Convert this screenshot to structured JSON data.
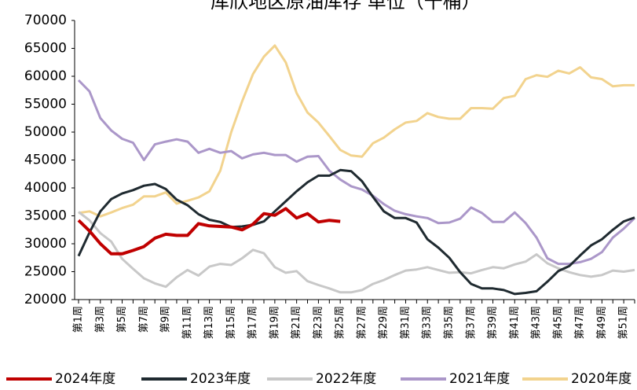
{
  "chart_data": {
    "type": "line",
    "title": "库欣地区原油库存 单位（千桶）",
    "categories": [
      "第1周",
      null,
      "第3周",
      null,
      "第5周",
      null,
      "第7周",
      null,
      "第9周",
      null,
      "第11周",
      null,
      "第13周",
      null,
      "第15周",
      null,
      "第17周",
      null,
      "第19周",
      null,
      "第21周",
      null,
      "第23周",
      null,
      "第25周",
      null,
      "第27周",
      null,
      "第29周",
      null,
      "第31周",
      null,
      "第33周",
      null,
      "第35周",
      null,
      "第37周",
      null,
      "第39周",
      null,
      "第41周",
      null,
      "第43周",
      null,
      "第45周",
      null,
      "第47周",
      null,
      "第49周",
      null,
      "第51周",
      null
    ],
    "ylim": [
      20000,
      70000
    ],
    "yticks": [
      20000,
      25000,
      30000,
      35000,
      40000,
      45000,
      50000,
      55000,
      60000,
      65000,
      70000
    ],
    "series": [
      {
        "name": "2024年度",
        "color": "#c00000",
        "values": [
          34200,
          32300,
          30000,
          28200,
          28200,
          28800,
          29500,
          31000,
          31700,
          31500,
          31500,
          33600,
          33200,
          33100,
          33000,
          32500,
          33500,
          35400,
          35100,
          36300,
          34600,
          35400,
          33900,
          34200,
          34000,
          null,
          null,
          null,
          null,
          null,
          null,
          null,
          null,
          null,
          null,
          null,
          null,
          null,
          null,
          null,
          null,
          null,
          null,
          null,
          null,
          null,
          null,
          null,
          null,
          null,
          null,
          null
        ]
      },
      {
        "name": "2023年度",
        "color": "#1f2a30",
        "values": [
          27800,
          32000,
          35800,
          38000,
          39000,
          39600,
          40400,
          40700,
          39800,
          37900,
          36900,
          35300,
          34300,
          33900,
          33000,
          33100,
          33400,
          34000,
          35800,
          37600,
          39400,
          41000,
          42200,
          42200,
          43200,
          43000,
          41200,
          38400,
          35800,
          34600,
          34600,
          33800,
          30800,
          29300,
          27500,
          24900,
          22800,
          22000,
          22000,
          21700,
          21000,
          21200,
          21500,
          23200,
          25100,
          26000,
          27900,
          29700,
          30800,
          32500,
          34000,
          34700
        ]
      },
      {
        "name": "2022年度",
        "color": "#c8c8c8",
        "values": [
          35700,
          34200,
          31900,
          30400,
          27300,
          25500,
          23800,
          22900,
          22300,
          24000,
          25300,
          24300,
          25900,
          26400,
          26200,
          27400,
          28900,
          28300,
          25800,
          24800,
          25100,
          23300,
          22600,
          22000,
          21300,
          21300,
          21700,
          22800,
          23500,
          24400,
          25200,
          25400,
          25800,
          25300,
          24800,
          24900,
          24700,
          25300,
          25800,
          25600,
          26300,
          26800,
          28100,
          26500,
          25600,
          24900,
          24400,
          24100,
          24400,
          25200,
          25000,
          25300
        ]
      },
      {
        "name": "2021年度",
        "color": "#ab97c9",
        "values": [
          59300,
          57300,
          52500,
          50300,
          48800,
          48100,
          45000,
          47800,
          48300,
          48700,
          48300,
          46300,
          47000,
          46300,
          46600,
          45300,
          46000,
          46300,
          45900,
          45900,
          44700,
          45600,
          45700,
          43100,
          41500,
          40300,
          39700,
          38600,
          37100,
          35900,
          35300,
          34900,
          34600,
          33700,
          33800,
          34500,
          36500,
          35500,
          33900,
          33900,
          35600,
          33700,
          31100,
          27400,
          26400,
          26400,
          26700,
          27300,
          28500,
          31100,
          32700,
          34600
        ]
      },
      {
        "name": "2020年度",
        "color": "#f2d38e",
        "values": [
          35500,
          35800,
          34900,
          35600,
          36400,
          37000,
          38500,
          38500,
          39200,
          37200,
          37700,
          38300,
          39400,
          43100,
          50000,
          55500,
          60400,
          63500,
          65500,
          62500,
          57000,
          53500,
          51700,
          49300,
          46800,
          45800,
          45600,
          48000,
          49000,
          50500,
          51700,
          52000,
          53400,
          52700,
          52400,
          52400,
          54300,
          54300,
          54200,
          56100,
          56500,
          59500,
          60200,
          59900,
          61000,
          60500,
          61600,
          59800,
          59500,
          58200,
          58400,
          58400
        ]
      }
    ]
  }
}
